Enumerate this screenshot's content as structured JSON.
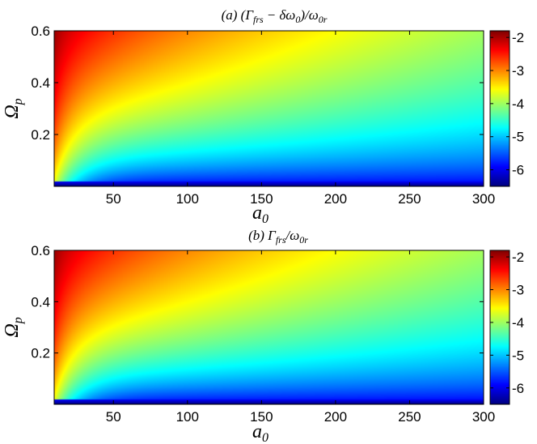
{
  "chart_data": [
    {
      "type": "heatmap",
      "title": "(a) (Γ_frs − δω_0)/ω_0r",
      "title_parts": {
        "prefix": "(a) (Γ",
        "sub1": "frs",
        "mid": "− δω",
        "sub2": "0",
        "close": ")/ω",
        "sub3": "0r"
      },
      "xlabel": "a_0",
      "xlabel_parts": {
        "base": "a",
        "sub": "0"
      },
      "ylabel": "Ω_p",
      "ylabel_parts": {
        "base": "Ω",
        "sub": "p"
      },
      "xlim": [
        10,
        300
      ],
      "ylim": [
        0,
        0.6
      ],
      "xticks": [
        50,
        100,
        150,
        200,
        250,
        300
      ],
      "yticks": [
        0.2,
        0.4,
        0.6
      ],
      "colorbar": {
        "min": -6.5,
        "max": -1.8,
        "ticks": [
          -2,
          -3,
          -4,
          -5,
          -6
        ],
        "colormap": "jet"
      },
      "surface": {
        "dc": 2.18,
        "k": 0.115,
        "ac": 0.072,
        "pc": 0.75,
        "floor": -6.5,
        "cap": -1.8,
        "tmax": 1.0
      },
      "sample_values": [
        {
          "x": 10,
          "y": 0.6,
          "value": -1.9
        },
        {
          "x": 300,
          "y": 0.6,
          "value": -3.5
        },
        {
          "x": 300,
          "y": 0.2,
          "value": -4.0
        },
        {
          "x": 150,
          "y": 0.02,
          "value": -6.0
        }
      ]
    },
    {
      "type": "heatmap",
      "title": "(b) Γ_frs/ω_0r",
      "title_parts": {
        "prefix": "(b) Γ",
        "sub1": "frs",
        "close": "/ω",
        "sub3": "0r"
      },
      "xlabel": "a_0",
      "xlabel_parts": {
        "base": "a",
        "sub": "0"
      },
      "ylabel": "Ω_p",
      "ylabel_parts": {
        "base": "Ω",
        "sub": "p"
      },
      "xlim": [
        10,
        300
      ],
      "ylim": [
        0,
        0.6
      ],
      "xticks": [
        50,
        100,
        150,
        200,
        250,
        300
      ],
      "yticks": [
        0.2,
        0.4,
        0.6
      ],
      "colorbar": {
        "min": -6.5,
        "max": -1.8,
        "ticks": [
          -2,
          -3,
          -4,
          -5,
          -6
        ],
        "colormap": "jet"
      },
      "surface": {
        "dc": 2.18,
        "k": 0.115,
        "ac": 0.072,
        "pc": 0.75,
        "floor": -6.5,
        "cap": -1.8,
        "tmax": 1.02
      },
      "sample_values": [
        {
          "x": 10,
          "y": 0.6,
          "value": -1.9
        },
        {
          "x": 300,
          "y": 0.6,
          "value": -3.6
        },
        {
          "x": 300,
          "y": 0.2,
          "value": -4.2
        },
        {
          "x": 150,
          "y": 0.02,
          "value": -6.0
        }
      ]
    }
  ]
}
